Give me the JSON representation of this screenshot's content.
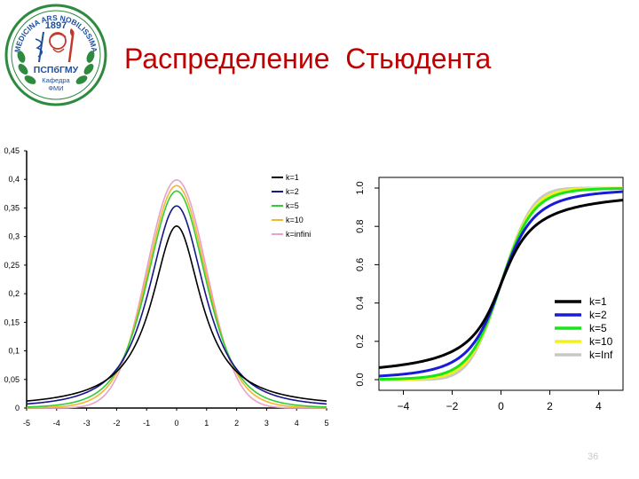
{
  "slide": {
    "title": "Распределение  Стьюдента",
    "page_number": "36",
    "logo": {
      "top_text": "MEDICINA ARS NOBILISSIMA",
      "year": "1897",
      "org": "ПСПбГМУ",
      "dept_line1": "Кафедра",
      "dept_line2": "ФМИ"
    }
  },
  "chart_data": [
    {
      "type": "line",
      "title": "",
      "xlabel": "",
      "ylabel": "",
      "xlim": [
        -5,
        5
      ],
      "ylim": [
        0,
        0.45
      ],
      "x_ticks": [
        "-5",
        "-4",
        "-3",
        "-2",
        "-1",
        "0",
        "1",
        "2",
        "3",
        "4",
        "5"
      ],
      "y_ticks": [
        "0",
        "0,05",
        "0,1",
        "0,15",
        "0,2",
        "0,25",
        "0,3",
        "0,35",
        "0,4",
        "0,45"
      ],
      "legend_position": "top-right",
      "function": "student-t-pdf",
      "series": [
        {
          "name": "k=1",
          "df": 1,
          "color": "#000000",
          "peak": 0.318
        },
        {
          "name": "k=2",
          "df": 2,
          "color": "#16168a",
          "peak": 0.354
        },
        {
          "name": "k=5",
          "df": 5,
          "color": "#33cc33",
          "peak": 0.38
        },
        {
          "name": "k=10",
          "df": 10,
          "color": "#f2b632",
          "peak": 0.389
        },
        {
          "name": "k=infini",
          "df": null,
          "color": "#e6a2c8",
          "peak": 0.399
        }
      ]
    },
    {
      "type": "line",
      "title": "",
      "xlabel": "",
      "ylabel": "",
      "xlim": [
        -5,
        5
      ],
      "ylim": [
        0,
        1
      ],
      "x_ticks": [
        "−4",
        "−2",
        "0",
        "2",
        "4"
      ],
      "y_ticks": [
        "0.0",
        "0.2",
        "0.4",
        "0.6",
        "0.8",
        "1.0"
      ],
      "legend_position": "bottom-right",
      "function": "student-t-cdf",
      "series": [
        {
          "name": "k=1",
          "df": 1,
          "color": "#000000"
        },
        {
          "name": "k=2",
          "df": 2,
          "color": "#1a1adb"
        },
        {
          "name": "k=5",
          "df": 5,
          "color": "#19e619"
        },
        {
          "name": "k=10",
          "df": 10,
          "color": "#f2f21a"
        },
        {
          "name": "k=Inf",
          "df": null,
          "color": "#c8c8c8"
        }
      ]
    }
  ]
}
